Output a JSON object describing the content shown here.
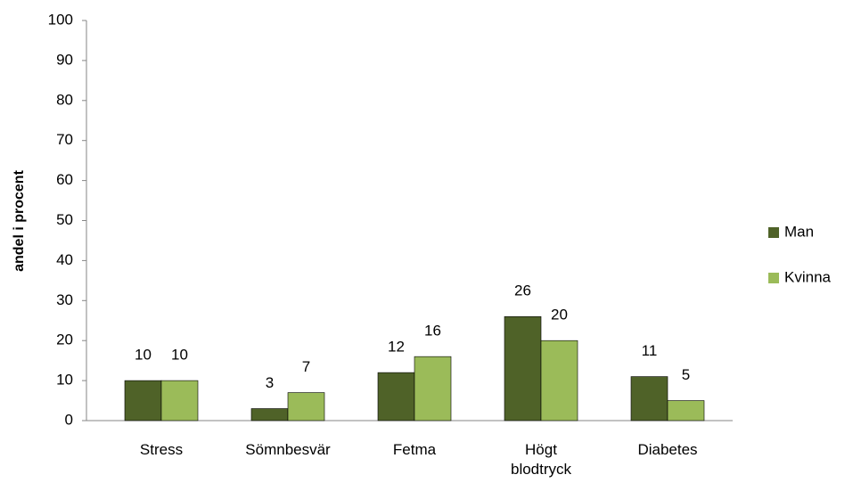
{
  "chart_data": {
    "type": "bar",
    "y_label": "andel i procent",
    "categories": [
      "Stress",
      "Sömnbesvär",
      "Fetma",
      "Högt blodtryck",
      "Diabetes"
    ],
    "series": [
      {
        "name": "Man",
        "color": "#4f6228",
        "values": [
          10,
          3,
          12,
          26,
          11
        ]
      },
      {
        "name": "Kvinna",
        "color": "#9bbb59",
        "values": [
          10,
          7,
          16,
          20,
          5
        ]
      }
    ],
    "ylim": [
      0,
      100
    ],
    "yticks": [
      0,
      10,
      20,
      30,
      40,
      50,
      60,
      70,
      80,
      90,
      100
    ],
    "legend": "right"
  }
}
